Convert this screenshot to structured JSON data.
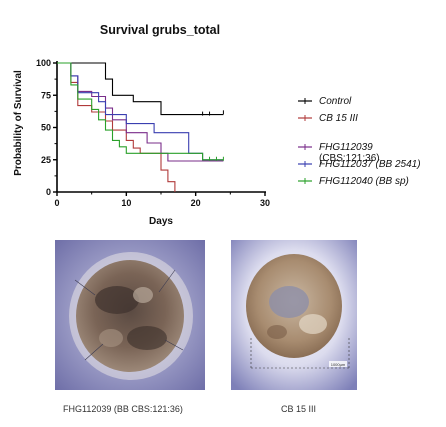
{
  "chart_data": {
    "type": "line",
    "title": "Survival grubs_total",
    "xlabel": "Days",
    "ylabel": "Probability of Survival",
    "xlim": [
      0,
      30
    ],
    "ylim": [
      0,
      100
    ],
    "xticks": [
      0,
      10,
      20,
      30
    ],
    "yticks": [
      0,
      25,
      50,
      75,
      100
    ],
    "legend_position": "right",
    "series": [
      {
        "name": "Control",
        "legend_lines": [
          "Control"
        ],
        "italic": true,
        "color": "#000000",
        "steps": [
          [
            0,
            100
          ],
          [
            7,
            100
          ],
          [
            7,
            87.5
          ],
          [
            8,
            87.5
          ],
          [
            8,
            75
          ],
          [
            11,
            75
          ],
          [
            11,
            70
          ],
          [
            15,
            70
          ],
          [
            15,
            60
          ],
          [
            24,
            60
          ]
        ],
        "censored": [
          [
            21,
            60
          ],
          [
            22,
            60
          ],
          [
            24,
            61
          ]
        ]
      },
      {
        "name": "CB 15 III",
        "legend_lines": [
          "CB 15 III"
        ],
        "italic": true,
        "color": "#b03a3a",
        "steps": [
          [
            0,
            100
          ],
          [
            2,
            100
          ],
          [
            2,
            85
          ],
          [
            3,
            85
          ],
          [
            3,
            67
          ],
          [
            5,
            67
          ],
          [
            5,
            62
          ],
          [
            7,
            62
          ],
          [
            7,
            55
          ],
          [
            8,
            55
          ],
          [
            8,
            48
          ],
          [
            10,
            48
          ],
          [
            10,
            40
          ],
          [
            11,
            40
          ],
          [
            11,
            34
          ],
          [
            12,
            34
          ],
          [
            12,
            30
          ],
          [
            15,
            30
          ],
          [
            15,
            17
          ],
          [
            16,
            17
          ],
          [
            16,
            8
          ],
          [
            17,
            8
          ],
          [
            17,
            0
          ]
        ],
        "censored": []
      },
      {
        "name": "FHG112039 (CBS:121:36)",
        "legend_lines": [
          "FHG112039",
          "(CBS:121:36)"
        ],
        "italic": false,
        "color": "#7a2d8a",
        "steps": [
          [
            0,
            100
          ],
          [
            2,
            100
          ],
          [
            2,
            90
          ],
          [
            3,
            90
          ],
          [
            3,
            78
          ],
          [
            5,
            78
          ],
          [
            5,
            74
          ],
          [
            7,
            74
          ],
          [
            7,
            65
          ],
          [
            8,
            65
          ],
          [
            8,
            56
          ],
          [
            10,
            56
          ],
          [
            10,
            46
          ],
          [
            13,
            46
          ],
          [
            13,
            38
          ],
          [
            15,
            38
          ],
          [
            15,
            30
          ],
          [
            16,
            30
          ],
          [
            16,
            24
          ],
          [
            24,
            24
          ]
        ],
        "censored": []
      },
      {
        "name": "FHG112037 (BB 2541)",
        "legend_lines": [
          "FHG112037 (BB 2541)"
        ],
        "italic": true,
        "color": "#3a3fb0",
        "steps": [
          [
            0,
            100
          ],
          [
            2,
            100
          ],
          [
            2,
            90
          ],
          [
            3,
            90
          ],
          [
            3,
            77
          ],
          [
            6,
            77
          ],
          [
            6,
            70
          ],
          [
            7,
            70
          ],
          [
            7,
            60
          ],
          [
            10,
            60
          ],
          [
            10,
            53
          ],
          [
            14,
            53
          ],
          [
            14,
            46
          ],
          [
            19,
            46
          ],
          [
            19,
            30
          ],
          [
            21,
            30
          ],
          [
            21,
            25
          ],
          [
            24,
            25
          ]
        ],
        "censored": []
      },
      {
        "name": "FHG112040 (BB sp)",
        "legend_lines": [
          "FHG112040 (BB sp)"
        ],
        "italic": true,
        "color": "#2aa02a",
        "steps": [
          [
            0,
            100
          ],
          [
            2,
            100
          ],
          [
            2,
            83
          ],
          [
            3,
            83
          ],
          [
            3,
            72
          ],
          [
            5,
            72
          ],
          [
            5,
            64
          ],
          [
            6,
            64
          ],
          [
            6,
            56
          ],
          [
            7,
            56
          ],
          [
            7,
            48
          ],
          [
            8,
            48
          ],
          [
            8,
            40
          ],
          [
            9,
            40
          ],
          [
            9,
            35
          ],
          [
            10,
            35
          ],
          [
            10,
            30
          ],
          [
            21,
            30
          ],
          [
            21,
            25
          ],
          [
            24,
            25
          ]
        ],
        "censored": [
          [
            22,
            25
          ],
          [
            23,
            25
          ],
          [
            24,
            25
          ]
        ]
      }
    ]
  },
  "captions": {
    "left_photo": "FHG112039 (BB CBS:121:36)",
    "right_photo": "CB 15 III",
    "scale_bar_label": "1000µm"
  }
}
